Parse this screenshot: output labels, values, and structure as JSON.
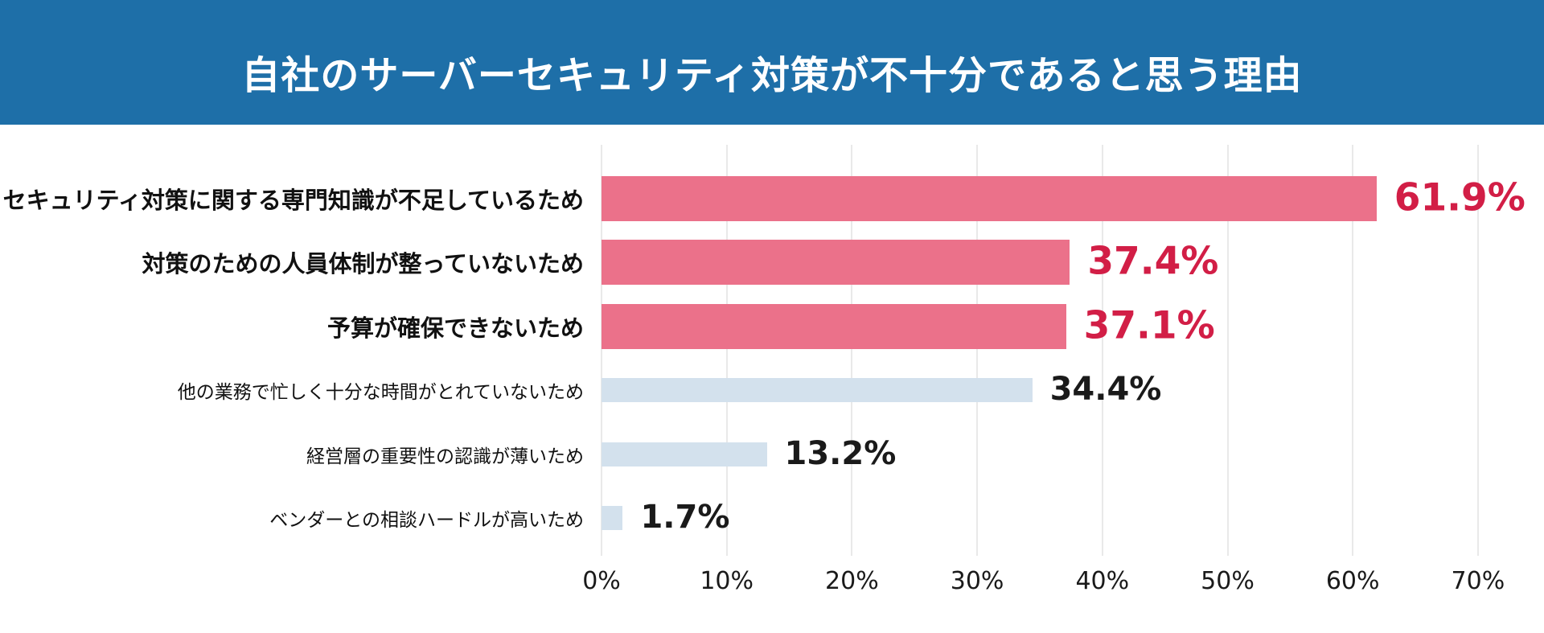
{
  "header": {
    "title": "自社のサーバーセキュリティ対策が不十分であると思う理由"
  },
  "chart_data": {
    "type": "bar",
    "orientation": "horizontal",
    "title": "自社のサーバーセキュリティ対策が不十分であると思う理由",
    "categories": [
      "セキュリティ対策に関する専門知識が不足しているため",
      "対策のための人員体制が整っていないため",
      "予算が確保できないため",
      "他の業務で忙しく十分な時間がとれていないため",
      "経営層の重要性の認識が薄いため",
      "ベンダーとの相談ハードルが高いため"
    ],
    "values": [
      61.9,
      37.4,
      37.1,
      34.4,
      13.2,
      1.7
    ],
    "value_labels": [
      "61.9%",
      "37.4%",
      "37.1%",
      "34.4%",
      "13.2%",
      "1.7%"
    ],
    "highlighted": [
      true,
      true,
      true,
      false,
      false,
      false
    ],
    "xlim": [
      0,
      70
    ],
    "x_ticks": [
      "0%",
      "10%",
      "20%",
      "30%",
      "40%",
      "50%",
      "60%",
      "70%"
    ],
    "grid": true,
    "legend": "none",
    "colors": {
      "header_bg": "#1E6FA8",
      "header_text": "#FFFFFF",
      "highlight_bar": "#EB718A",
      "highlight_value_text": "#D21E46",
      "normal_bar": "#D3E1ED",
      "normal_value_text": "#1A1A1A",
      "gridline": "#E9E9E9"
    }
  }
}
